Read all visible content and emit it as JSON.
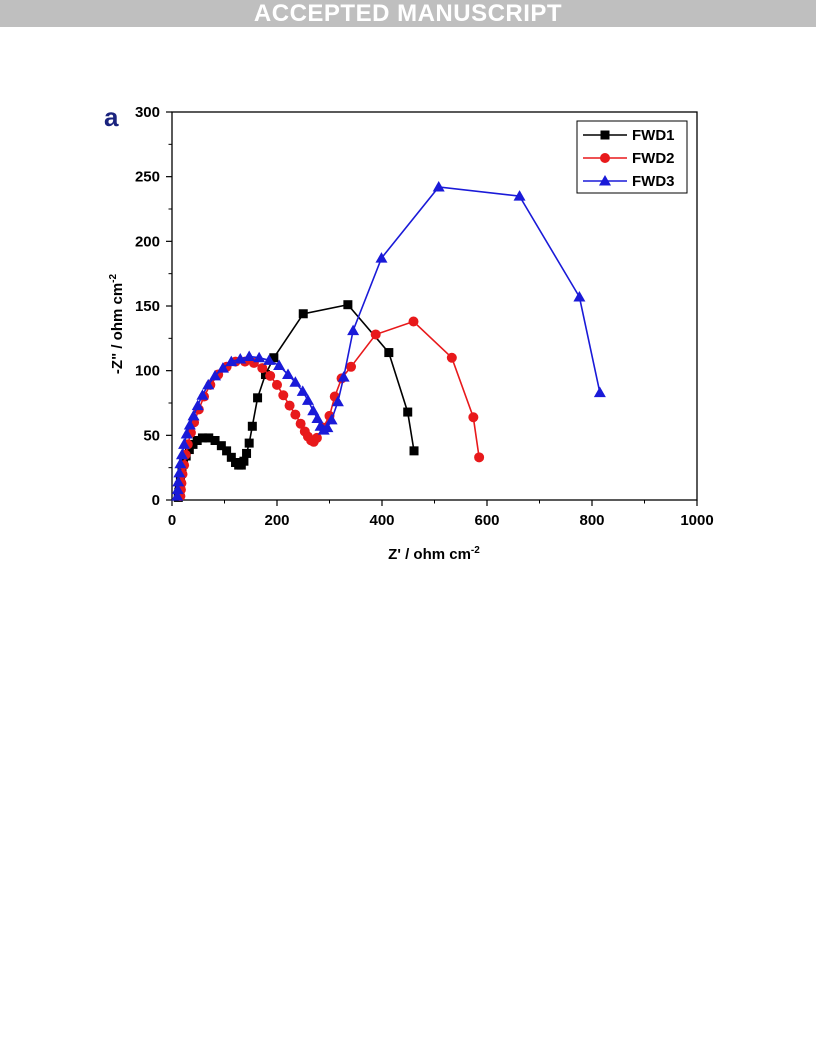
{
  "banner": {
    "text": "ACCEPTED MANUSCRIPT"
  },
  "figure": {
    "panel_label": "a"
  },
  "chart_data": {
    "type": "scatter",
    "xlabel": "Z' / ohm cm",
    "xlabel_sup": "-2",
    "ylabel": "-Z\" / ohm cm",
    "ylabel_sup": "-2",
    "xlim": [
      0,
      1000
    ],
    "ylim": [
      0,
      300
    ],
    "x_ticks": [
      0,
      200,
      400,
      600,
      800,
      1000
    ],
    "y_ticks": [
      0,
      50,
      100,
      150,
      200,
      250,
      300
    ],
    "grid": false,
    "legend_position": "top-right",
    "series": [
      {
        "name": "FWD1",
        "color": "#000000",
        "marker": "square",
        "points": [
          [
            12,
            2
          ],
          [
            13,
            6
          ],
          [
            14,
            11
          ],
          [
            16,
            17
          ],
          [
            19,
            23
          ],
          [
            22,
            28
          ],
          [
            27,
            34
          ],
          [
            33,
            39
          ],
          [
            40,
            43
          ],
          [
            48,
            46
          ],
          [
            58,
            48
          ],
          [
            70,
            48
          ],
          [
            82,
            46
          ],
          [
            94,
            42
          ],
          [
            104,
            38
          ],
          [
            113,
            33
          ],
          [
            121,
            29
          ],
          [
            127,
            27
          ],
          [
            132,
            27
          ],
          [
            137,
            30
          ],
          [
            142,
            36
          ],
          [
            147,
            44
          ],
          [
            153,
            57
          ],
          [
            163,
            79
          ],
          [
            178,
            97
          ],
          [
            194,
            110
          ],
          [
            250,
            144
          ],
          [
            335,
            151
          ],
          [
            413,
            114
          ],
          [
            449,
            68
          ],
          [
            461,
            38
          ]
        ]
      },
      {
        "name": "FWD2",
        "color": "#e8191b",
        "marker": "circle",
        "points": [
          [
            16,
            3
          ],
          [
            17,
            8
          ],
          [
            18,
            13
          ],
          [
            20,
            20
          ],
          [
            23,
            27
          ],
          [
            26,
            35
          ],
          [
            30,
            43
          ],
          [
            36,
            52
          ],
          [
            42,
            60
          ],
          [
            51,
            70
          ],
          [
            61,
            80
          ],
          [
            73,
            89
          ],
          [
            88,
            97
          ],
          [
            104,
            103
          ],
          [
            121,
            107
          ],
          [
            139,
            107
          ],
          [
            156,
            106
          ],
          [
            172,
            102
          ],
          [
            187,
            96
          ],
          [
            200,
            89
          ],
          [
            212,
            81
          ],
          [
            224,
            73
          ],
          [
            235,
            66
          ],
          [
            245,
            59
          ],
          [
            253,
            53
          ],
          [
            259,
            49
          ],
          [
            265,
            46
          ],
          [
            270,
            45
          ],
          [
            276,
            48
          ],
          [
            288,
            56
          ],
          [
            300,
            65
          ],
          [
            310,
            80
          ],
          [
            323,
            94
          ],
          [
            341,
            103
          ],
          [
            388,
            128
          ],
          [
            460,
            138
          ],
          [
            533,
            110
          ],
          [
            574,
            64
          ],
          [
            585,
            33
          ]
        ]
      },
      {
        "name": "FWD3",
        "color": "#1a1ad8",
        "marker": "triangle",
        "points": [
          [
            10,
            3
          ],
          [
            11,
            8
          ],
          [
            12,
            14
          ],
          [
            14,
            21
          ],
          [
            16,
            28
          ],
          [
            19,
            35
          ],
          [
            23,
            43
          ],
          [
            28,
            51
          ],
          [
            34,
            58
          ],
          [
            41,
            65
          ],
          [
            49,
            73
          ],
          [
            58,
            81
          ],
          [
            69,
            89
          ],
          [
            82,
            96
          ],
          [
            97,
            102
          ],
          [
            113,
            107
          ],
          [
            130,
            109
          ],
          [
            147,
            111
          ],
          [
            166,
            110
          ],
          [
            185,
            108
          ],
          [
            204,
            104
          ],
          [
            221,
            97
          ],
          [
            235,
            91
          ],
          [
            249,
            84
          ],
          [
            259,
            77
          ],
          [
            269,
            69
          ],
          [
            277,
            63
          ],
          [
            283,
            57
          ],
          [
            289,
            54
          ],
          [
            296,
            56
          ],
          [
            304,
            62
          ],
          [
            316,
            76
          ],
          [
            327,
            95
          ],
          [
            345,
            131
          ],
          [
            399,
            187
          ],
          [
            508,
            242
          ],
          [
            662,
            235
          ],
          [
            776,
            157
          ],
          [
            815,
            83
          ]
        ]
      }
    ]
  }
}
